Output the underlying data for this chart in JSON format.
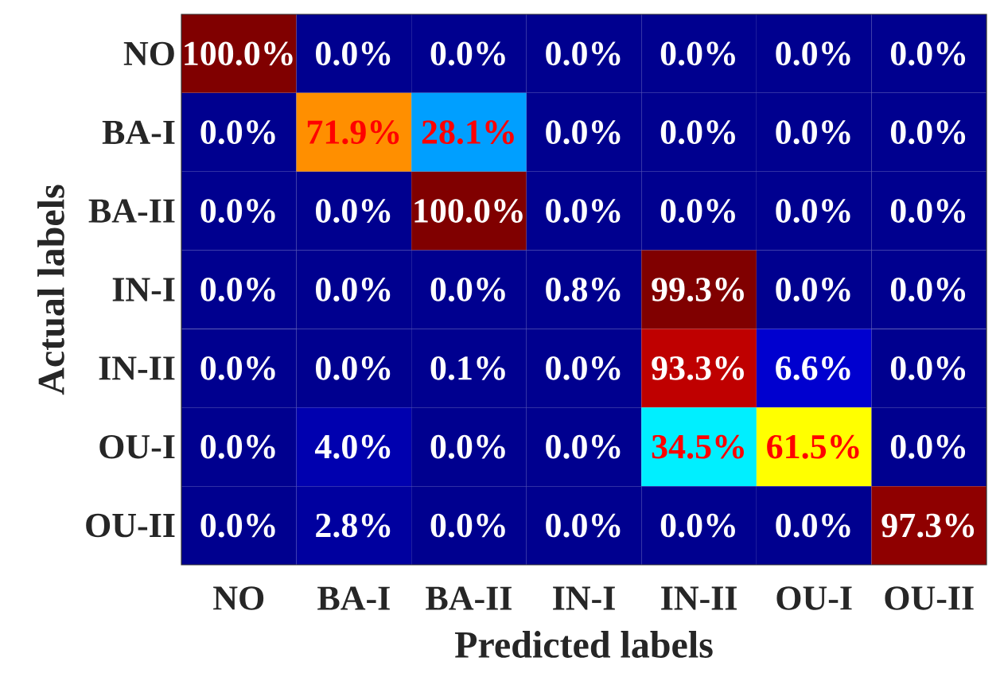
{
  "chart_data": {
    "type": "heatmap",
    "xlabel": "Predicted labels",
    "ylabel": "Actual labels",
    "categories": [
      "NO",
      "BA-I",
      "BA-II",
      "IN-I",
      "IN-II",
      "OU-I",
      "OU-II"
    ],
    "y_categories": [
      "NO",
      "BA-I",
      "BA-II",
      "IN-I",
      "IN-II",
      "OU-I",
      "OU-II"
    ],
    "cells": [
      [
        100.0,
        0.0,
        0.0,
        0.0,
        0.0,
        0.0,
        0.0
      ],
      [
        0.0,
        71.9,
        28.1,
        0.0,
        0.0,
        0.0,
        0.0
      ],
      [
        0.0,
        0.0,
        100.0,
        0.0,
        0.0,
        0.0,
        0.0
      ],
      [
        0.0,
        0.0,
        0.0,
        0.8,
        99.3,
        0.0,
        0.0
      ],
      [
        0.0,
        0.0,
        0.1,
        0.0,
        93.3,
        6.6,
        0.0
      ],
      [
        0.0,
        4.0,
        0.0,
        0.0,
        34.5,
        61.5,
        0.0
      ],
      [
        0.0,
        2.8,
        0.0,
        0.0,
        0.0,
        0.0,
        97.3
      ]
    ],
    "cell_labels": [
      [
        "100.0%",
        "0.0%",
        "0.0%",
        "0.0%",
        "0.0%",
        "0.0%",
        "0.0%"
      ],
      [
        "0.0%",
        "71.9%",
        "28.1%",
        "0.0%",
        "0.0%",
        "0.0%",
        "0.0%"
      ],
      [
        "0.0%",
        "0.0%",
        "100.0%",
        "0.0%",
        "0.0%",
        "0.0%",
        "0.0%"
      ],
      [
        "0.0%",
        "0.0%",
        "0.0%",
        "0.8%",
        "99.3%",
        "0.0%",
        "0.0%"
      ],
      [
        "0.0%",
        "0.0%",
        "0.1%",
        "0.0%",
        "93.3%",
        "6.6%",
        "0.0%"
      ],
      [
        "0.0%",
        "4.0%",
        "0.0%",
        "0.0%",
        "34.5%",
        "61.5%",
        "0.0%"
      ],
      [
        "0.0%",
        "2.8%",
        "0.0%",
        "0.0%",
        "0.0%",
        "0.0%",
        "97.3%"
      ]
    ]
  }
}
